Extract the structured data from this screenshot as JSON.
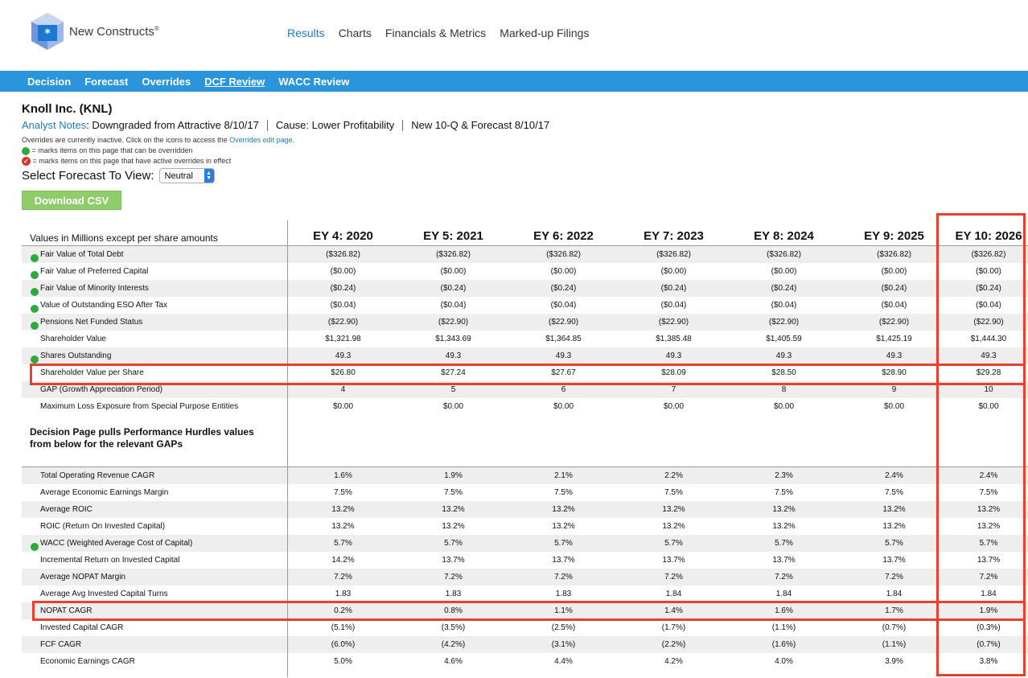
{
  "header": {
    "brand": "New Constructs",
    "brand_mark": "®",
    "nav": [
      "Results",
      "Charts",
      "Financials & Metrics",
      "Marked-up Filings"
    ],
    "active_nav": "Results"
  },
  "subnav": {
    "items": [
      "Decision",
      "Forecast",
      "Overrides",
      "DCF Review",
      "WACC Review"
    ],
    "active": "DCF Review"
  },
  "company": {
    "title": "Knoll Inc. (KNL)",
    "notes_link": "Analyst Notes",
    "notes_text": ": Downgraded from Attractive 8/10/17",
    "cause": "Cause: Lower Profitability",
    "update": "New 10-Q & Forecast 8/10/17"
  },
  "overrides": {
    "line1_a": "Overrides are currently inactive. Click on the icons to access the ",
    "line1_link": "Overrides edit page",
    "line1_b": ".",
    "line2": "= marks items on this page that can be overridden",
    "line3": "= marks items on this page that have active overrides in effect"
  },
  "forecast": {
    "label": "Select Forecast To View:",
    "value": "Neutral"
  },
  "csv_button": "Download CSV",
  "table": {
    "header_label": "Values in Millions except per share amounts",
    "columns": [
      "EY 4: 2020",
      "EY 5: 2021",
      "EY 6: 2022",
      "EY 7: 2023",
      "EY 8: 2024",
      "EY 9: 2025",
      "EY 10: 2026"
    ],
    "rows1": [
      {
        "label": "Fair Value of Total Debt",
        "dot": true,
        "values": [
          "($326.82)",
          "($326.82)",
          "($326.82)",
          "($326.82)",
          "($326.82)",
          "($326.82)",
          "($326.82)"
        ]
      },
      {
        "label": "Fair Value of Preferred Capital",
        "dot": true,
        "values": [
          "($0.00)",
          "($0.00)",
          "($0.00)",
          "($0.00)",
          "($0.00)",
          "($0.00)",
          "($0.00)"
        ]
      },
      {
        "label": "Fair Value of Minority Interests",
        "dot": true,
        "values": [
          "($0.24)",
          "($0.24)",
          "($0.24)",
          "($0.24)",
          "($0.24)",
          "($0.24)",
          "($0.24)"
        ]
      },
      {
        "label": "Value of Outstanding ESO After Tax",
        "dot": true,
        "values": [
          "($0.04)",
          "($0.04)",
          "($0.04)",
          "($0.04)",
          "($0.04)",
          "($0.04)",
          "($0.04)"
        ]
      },
      {
        "label": "Pensions Net Funded Status",
        "dot": true,
        "values": [
          "($22.90)",
          "($22.90)",
          "($22.90)",
          "($22.90)",
          "($22.90)",
          "($22.90)",
          "($22.90)"
        ]
      },
      {
        "label": "Shareholder Value",
        "dot": false,
        "values": [
          "$1,321.98",
          "$1,343.69",
          "$1,364.85",
          "$1,385.48",
          "$1,405.59",
          "$1,425.19",
          "$1,444.30"
        ]
      },
      {
        "label": "Shares Outstanding",
        "dot": true,
        "values": [
          "49.3",
          "49.3",
          "49.3",
          "49.3",
          "49.3",
          "49.3",
          "49.3"
        ]
      },
      {
        "label": "Shareholder Value per Share",
        "dot": false,
        "values": [
          "$26.80",
          "$27.24",
          "$27.67",
          "$28.09",
          "$28.50",
          "$28.90",
          "$29.28"
        ]
      },
      {
        "label": "GAP (Growth Appreciation Period)",
        "dot": false,
        "values": [
          "4",
          "5",
          "6",
          "7",
          "8",
          "9",
          "10"
        ]
      },
      {
        "label": "Maximum Loss Exposure from Special Purpose Entities",
        "dot": false,
        "values": [
          "$0.00",
          "$0.00",
          "$0.00",
          "$0.00",
          "$0.00",
          "$0.00",
          "$0.00"
        ]
      }
    ],
    "section_title_1": "Decision Page pulls Performance Hurdles values",
    "section_title_2": "from below for the relevant GAPs",
    "rows2": [
      {
        "label": "Total Operating Revenue CAGR",
        "dot": false,
        "values": [
          "1.6%",
          "1.9%",
          "2.1%",
          "2.2%",
          "2.3%",
          "2.4%",
          "2.4%"
        ]
      },
      {
        "label": "Average Economic Earnings Margin",
        "dot": false,
        "values": [
          "7.5%",
          "7.5%",
          "7.5%",
          "7.5%",
          "7.5%",
          "7.5%",
          "7.5%"
        ]
      },
      {
        "label": "Average ROIC",
        "dot": false,
        "values": [
          "13.2%",
          "13.2%",
          "13.2%",
          "13.2%",
          "13.2%",
          "13.2%",
          "13.2%"
        ]
      },
      {
        "label": "ROIC (Return On Invested Capital)",
        "dot": false,
        "values": [
          "13.2%",
          "13.2%",
          "13.2%",
          "13.2%",
          "13.2%",
          "13.2%",
          "13.2%"
        ]
      },
      {
        "label": "WACC (Weighted Average Cost of Capital)",
        "dot": true,
        "values": [
          "5.7%",
          "5.7%",
          "5.7%",
          "5.7%",
          "5.7%",
          "5.7%",
          "5.7%"
        ]
      },
      {
        "label": "Incremental Return on Invested Capital",
        "dot": false,
        "values": [
          "14.2%",
          "13.7%",
          "13.7%",
          "13.7%",
          "13.7%",
          "13.7%",
          "13.7%"
        ]
      },
      {
        "label": "Average NOPAT Margin",
        "dot": false,
        "values": [
          "7.2%",
          "7.2%",
          "7.2%",
          "7.2%",
          "7.2%",
          "7.2%",
          "7.2%"
        ]
      },
      {
        "label": "Average Avg Invested Capital Turns",
        "dot": false,
        "values": [
          "1.83",
          "1.83",
          "1.83",
          "1.84",
          "1.84",
          "1.84",
          "1.84"
        ]
      },
      {
        "label": "NOPAT CAGR",
        "dot": false,
        "values": [
          "0.2%",
          "0.8%",
          "1.1%",
          "1.4%",
          "1.6%",
          "1.7%",
          "1.9%"
        ]
      },
      {
        "label": "Invested Capital CAGR",
        "dot": false,
        "values": [
          "(5.1%)",
          "(3.5%)",
          "(2.5%)",
          "(1.7%)",
          "(1.1%)",
          "(0.7%)",
          "(0.3%)"
        ]
      },
      {
        "label": "FCF CAGR",
        "dot": false,
        "values": [
          "(6.0%)",
          "(4.2%)",
          "(3.1%)",
          "(2.2%)",
          "(1.6%)",
          "(1.1%)",
          "(0.7%)"
        ]
      },
      {
        "label": "Economic Earnings CAGR",
        "dot": false,
        "values": [
          "5.0%",
          "4.6%",
          "4.4%",
          "4.2%",
          "4.0%",
          "3.9%",
          "3.8%"
        ]
      }
    ]
  },
  "colors": {
    "accent_blue": "#2a95dc",
    "link_blue": "#1e7bc4",
    "override_green": "#2eaa3c",
    "highlight_red": "#e8402a",
    "csv_green": "#8fcd6a"
  }
}
